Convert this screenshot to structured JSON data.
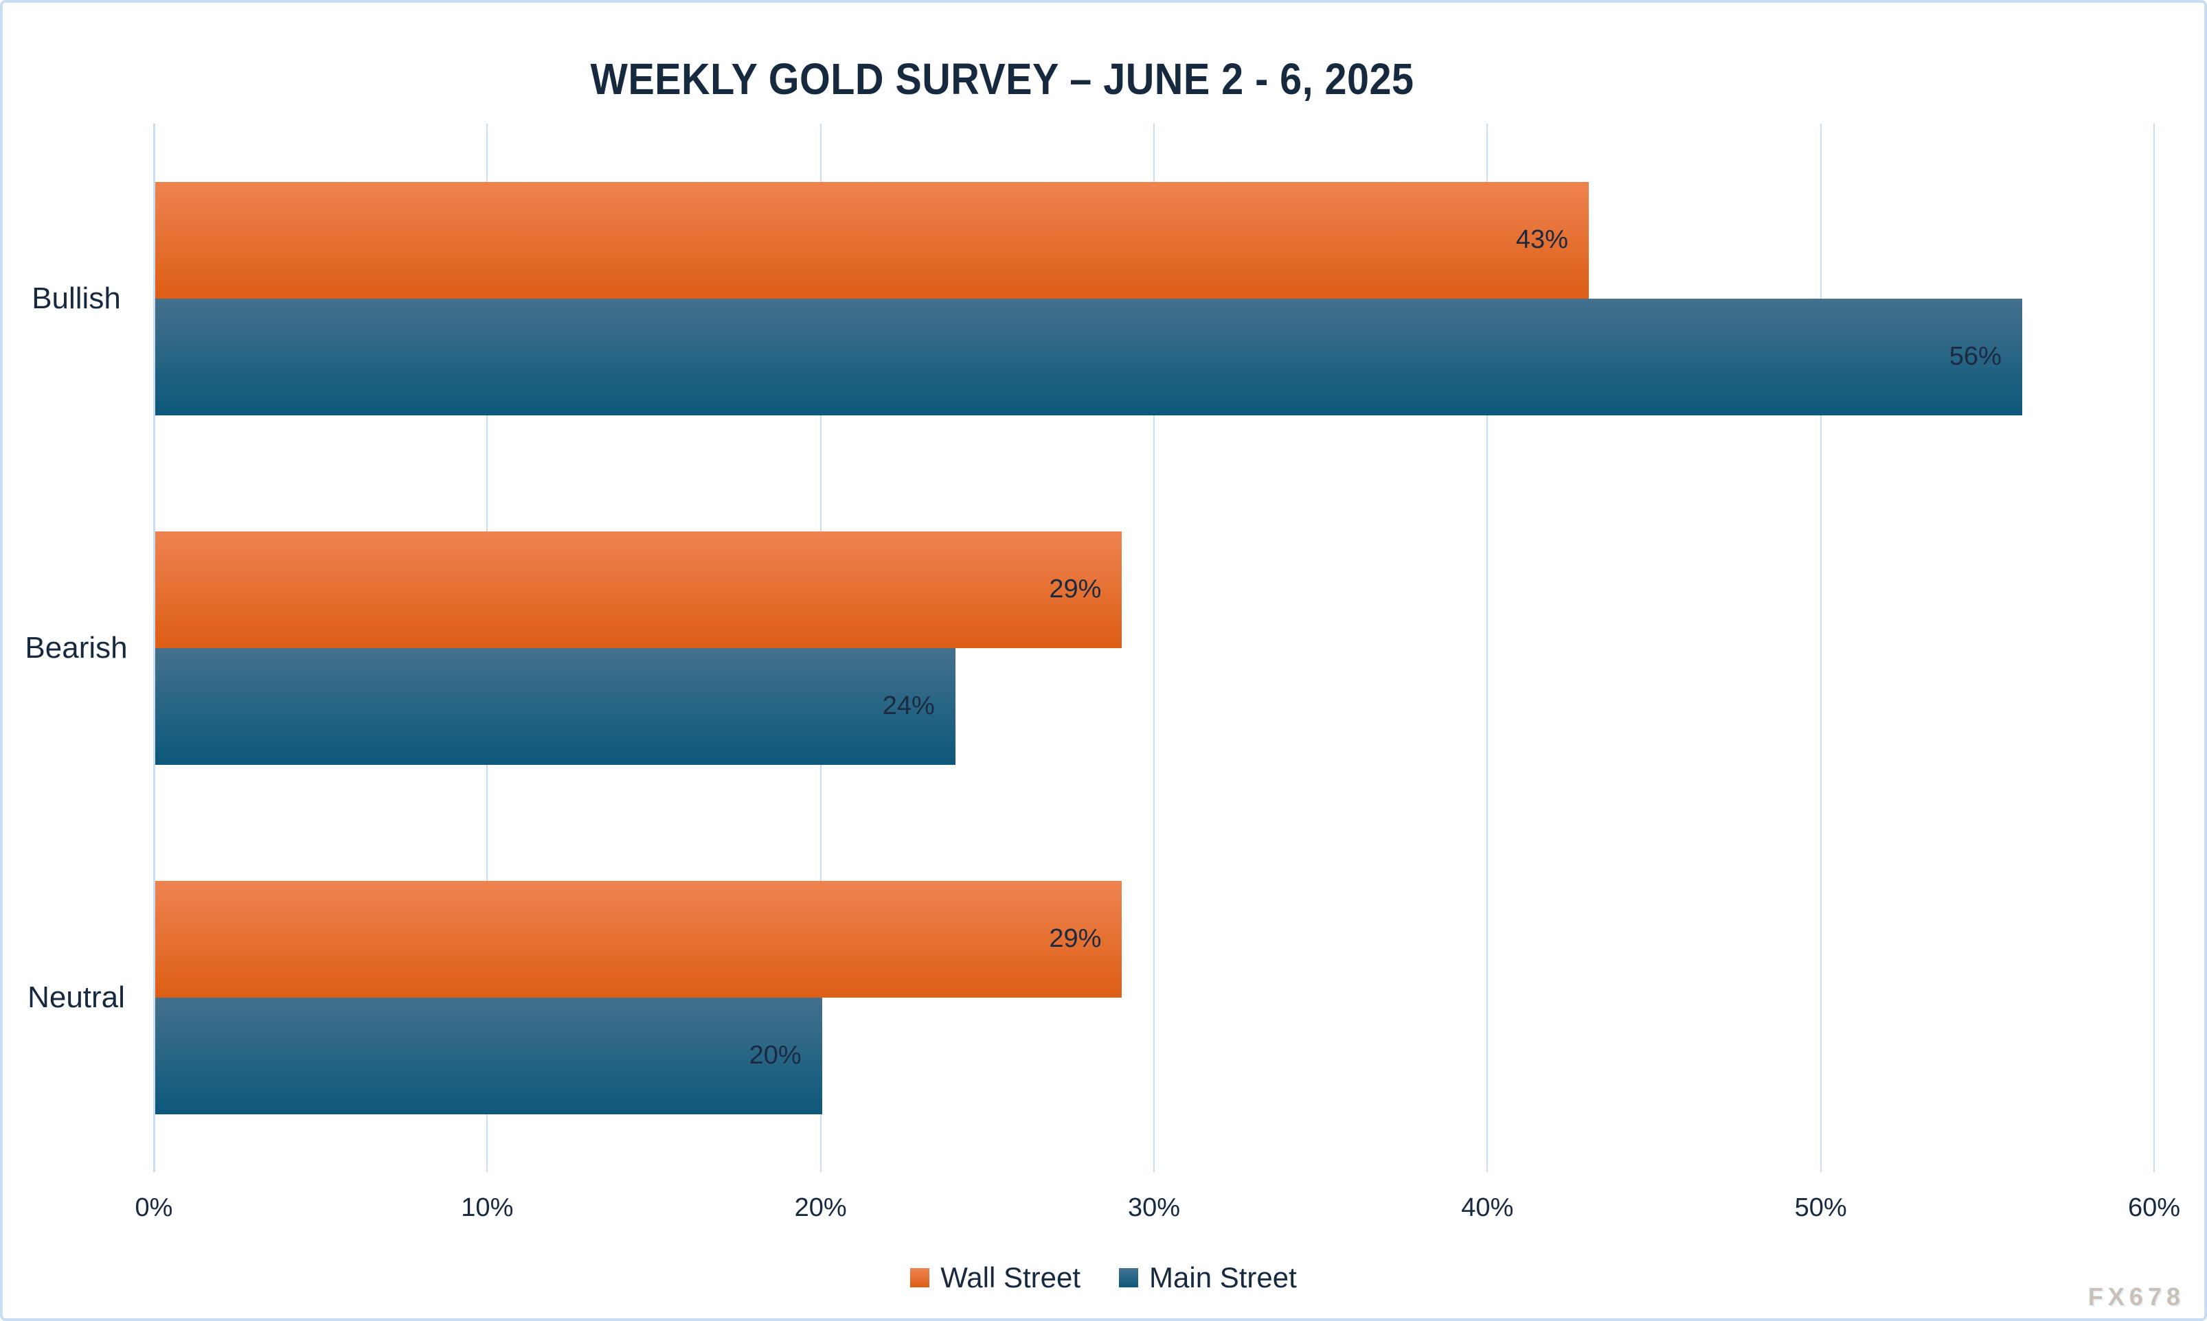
{
  "title": "WEEKLY GOLD SURVEY – JUNE 2 - 6, 2025",
  "watermark": "FX678",
  "colors": {
    "accent_orange_top": "#ee8350",
    "accent_orange_bottom": "#dd5e15",
    "accent_blue_top": "#44718d",
    "accent_blue_bottom": "#0c587b",
    "text_navy": "#16293e",
    "gridline_blue": "#c9ddf2"
  },
  "chart_data": {
    "type": "bar",
    "orientation": "horizontal",
    "title": "WEEKLY GOLD SURVEY – JUNE 2 - 6, 2025",
    "categories": [
      "Bullish",
      "Bearish",
      "Neutral"
    ],
    "series": [
      {
        "name": "Wall Street",
        "color_top": "#ee8350",
        "color_bottom": "#dd5e15",
        "values": [
          43,
          29,
          29
        ]
      },
      {
        "name": "Main Street",
        "color_top": "#44718d",
        "color_bottom": "#0c587b",
        "values": [
          56,
          24,
          20
        ]
      }
    ],
    "value_labels": [
      [
        "43%",
        "29%",
        "29%"
      ],
      [
        "56%",
        "24%",
        "20%"
      ]
    ],
    "value_suffix": "%",
    "xlabel": "",
    "ylabel": "",
    "xlim": [
      0,
      60
    ],
    "x_ticks": [
      "0%",
      "10%",
      "20%",
      "30%",
      "40%",
      "50%",
      "60%"
    ],
    "grid": true,
    "legend_position": "bottom",
    "value_label_position": "inside-end"
  }
}
